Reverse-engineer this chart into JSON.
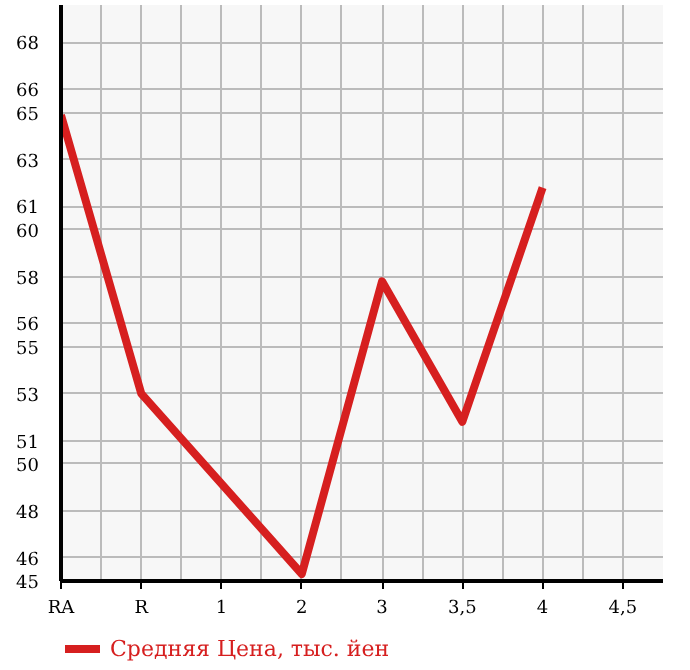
{
  "chart_data": {
    "type": "line",
    "categories": [
      "RA",
      "R",
      "1",
      "2",
      "3",
      "3,5",
      "4",
      "4,5"
    ],
    "series": [
      {
        "name": "Средняя Цена, тыс. йен",
        "color": "#d61f1f",
        "values": [
          64.9,
          53.0,
          null,
          45.3,
          57.8,
          51.8,
          61.8,
          null
        ]
      }
    ],
    "ylim": [
      45,
      69.6
    ],
    "yticks": [
      45,
      46,
      48,
      50,
      51,
      53,
      55,
      56,
      58,
      60,
      61,
      63,
      65,
      66,
      68
    ],
    "grid": true,
    "legend": "bottom",
    "marker": "none",
    "line_style": "solid"
  }
}
